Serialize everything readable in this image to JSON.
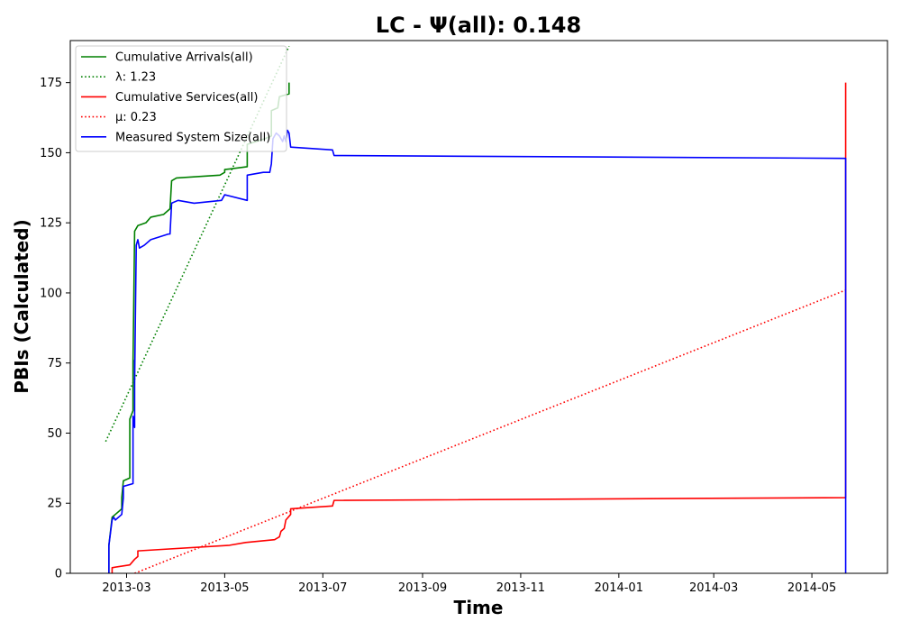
{
  "chart_data": {
    "type": "line",
    "title": "LC -  Ψ(all): 0.148",
    "xlabel": "Time",
    "ylabel": "PBIs (Calculated)",
    "xlim": [
      "2013-01-25",
      "2014-06-17"
    ],
    "ylim": [
      0,
      190
    ],
    "grid": false,
    "legend_position": "top-left",
    "x_ticks": [
      "2013-03",
      "2013-05",
      "2013-07",
      "2013-09",
      "2013-11",
      "2014-01",
      "2014-03",
      "2014-05"
    ],
    "x_tick_dates": [
      "2013-03-01",
      "2013-05-01",
      "2013-07-01",
      "2013-09-01",
      "2013-11-01",
      "2014-01-01",
      "2014-03-01",
      "2014-05-01"
    ],
    "y_ticks": [
      0,
      25,
      50,
      75,
      100,
      125,
      150,
      175
    ],
    "series": [
      {
        "name": "Cumulative Arrivals(all)",
        "style": "solid",
        "color": "#008000",
        "points": [
          [
            "2013-02-18",
            0
          ],
          [
            "2013-02-18",
            10
          ],
          [
            "2013-02-20",
            20
          ],
          [
            "2013-02-22",
            21
          ],
          [
            "2013-02-26",
            23
          ],
          [
            "2013-02-26",
            27
          ],
          [
            "2013-02-27",
            33
          ],
          [
            "2013-03-03",
            34
          ],
          [
            "2013-03-03",
            55
          ],
          [
            "2013-03-05",
            58
          ],
          [
            "2013-03-05",
            75
          ],
          [
            "2013-03-06",
            122
          ],
          [
            "2013-03-08",
            124
          ],
          [
            "2013-03-13",
            125
          ],
          [
            "2013-03-16",
            127
          ],
          [
            "2013-03-24",
            128
          ],
          [
            "2013-03-28",
            130
          ],
          [
            "2013-03-29",
            140
          ],
          [
            "2013-04-01",
            141
          ],
          [
            "2013-04-28",
            142
          ],
          [
            "2013-05-01",
            143
          ],
          [
            "2013-05-01",
            144
          ],
          [
            "2013-05-15",
            145
          ],
          [
            "2013-05-15",
            153
          ],
          [
            "2013-05-26",
            155
          ],
          [
            "2013-05-30",
            156
          ],
          [
            "2013-05-30",
            165
          ],
          [
            "2013-06-03",
            166
          ],
          [
            "2013-06-04",
            170
          ],
          [
            "2013-06-10",
            171
          ],
          [
            "2013-06-10",
            175
          ]
        ]
      },
      {
        "name": "λ: 1.23",
        "style": "dotted",
        "color": "#008000",
        "points": [
          [
            "2013-02-16",
            47
          ],
          [
            "2013-06-10",
            188
          ]
        ]
      },
      {
        "name": "Cumulative Services(all)",
        "style": "solid",
        "color": "#ff0000",
        "points": [
          [
            "2013-02-20",
            0
          ],
          [
            "2013-02-20",
            2
          ],
          [
            "2013-03-03",
            3
          ],
          [
            "2013-03-06",
            5
          ],
          [
            "2013-03-08",
            6
          ],
          [
            "2013-03-08",
            8
          ],
          [
            "2013-05-04",
            10
          ],
          [
            "2013-05-14",
            11
          ],
          [
            "2013-06-01",
            12
          ],
          [
            "2013-06-04",
            13
          ],
          [
            "2013-06-05",
            15
          ],
          [
            "2013-06-07",
            16
          ],
          [
            "2013-06-08",
            19
          ],
          [
            "2013-06-11",
            21
          ],
          [
            "2013-06-11",
            23
          ],
          [
            "2013-07-07",
            24
          ],
          [
            "2013-07-08",
            26
          ],
          [
            "2014-05-22",
            27
          ],
          [
            "2014-05-22",
            175
          ]
        ]
      },
      {
        "name": "μ: 0.23",
        "style": "dotted",
        "color": "#ff0000",
        "points": [
          [
            "2013-03-06",
            0
          ],
          [
            "2014-05-22",
            101
          ]
        ]
      },
      {
        "name": "Measured System Size(all)",
        "style": "solid",
        "color": "#0000ff",
        "points": [
          [
            "2013-02-18",
            0
          ],
          [
            "2013-02-18",
            10
          ],
          [
            "2013-02-20",
            19
          ],
          [
            "2013-02-21",
            20
          ],
          [
            "2013-02-22",
            19
          ],
          [
            "2013-02-26",
            21
          ],
          [
            "2013-02-27",
            27
          ],
          [
            "2013-02-27",
            31
          ],
          [
            "2013-03-05",
            32
          ],
          [
            "2013-03-05",
            52
          ],
          [
            "2013-03-05",
            56
          ],
          [
            "2013-03-06",
            52
          ],
          [
            "2013-03-06",
            76
          ],
          [
            "2013-03-06",
            68
          ],
          [
            "2013-03-07",
            117
          ],
          [
            "2013-03-08",
            119
          ],
          [
            "2013-03-09",
            116
          ],
          [
            "2013-03-12",
            117
          ],
          [
            "2013-03-16",
            119
          ],
          [
            "2013-03-27",
            121
          ],
          [
            "2013-03-28",
            121
          ],
          [
            "2013-03-29",
            132
          ],
          [
            "2013-04-02",
            133
          ],
          [
            "2013-04-12",
            132
          ],
          [
            "2013-04-29",
            133
          ],
          [
            "2013-05-01",
            135
          ],
          [
            "2013-05-15",
            133
          ],
          [
            "2013-05-15",
            142
          ],
          [
            "2013-05-25",
            143
          ],
          [
            "2013-05-29",
            143
          ],
          [
            "2013-05-30",
            146
          ],
          [
            "2013-05-31",
            155
          ],
          [
            "2013-06-02",
            157
          ],
          [
            "2013-06-04",
            156
          ],
          [
            "2013-06-06",
            154
          ],
          [
            "2013-06-07",
            156
          ],
          [
            "2013-06-08",
            154
          ],
          [
            "2013-06-09",
            158
          ],
          [
            "2013-06-10",
            157
          ],
          [
            "2013-06-11",
            152
          ],
          [
            "2013-07-07",
            151
          ],
          [
            "2013-07-08",
            149
          ],
          [
            "2014-05-22",
            148
          ],
          [
            "2014-05-22",
            0
          ]
        ]
      }
    ]
  }
}
